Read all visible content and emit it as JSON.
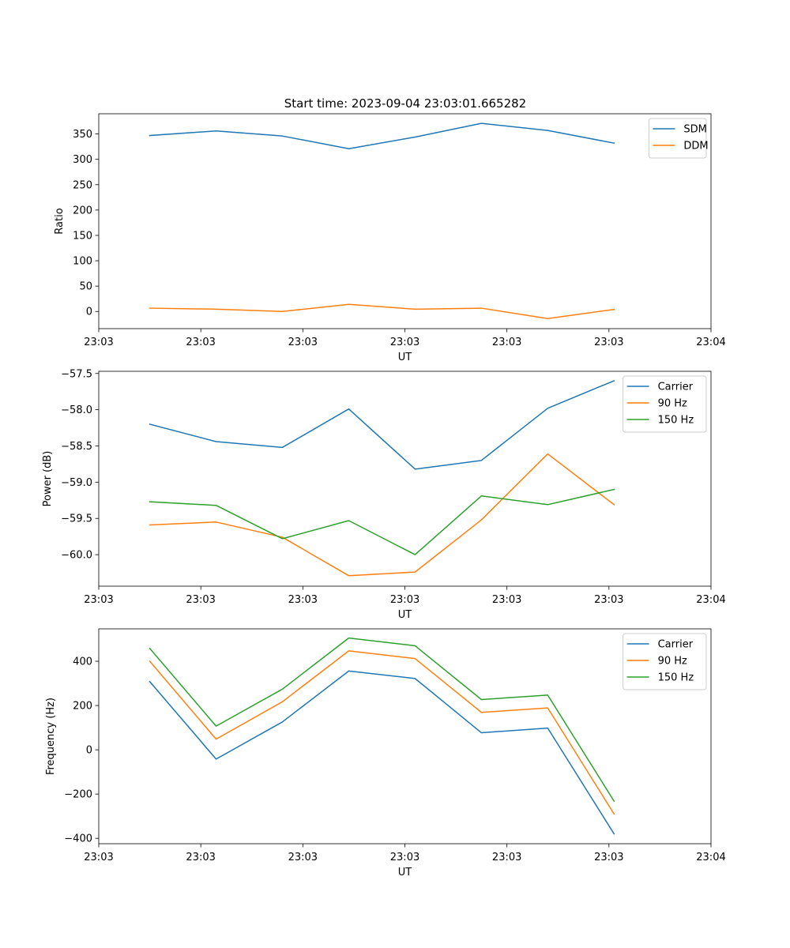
{
  "figure_title": "Start time: 2023-09-04 23:03:01.665282",
  "colors": {
    "blue": "#1f77b4",
    "orange": "#ff7f0e",
    "green": "#2ca02c"
  },
  "chart_data": [
    {
      "type": "line",
      "title": "Start time: 2023-09-04 23:03:01.665282",
      "xlabel": "UT",
      "ylabel": "Ratio",
      "xlim": [
        -0.1,
        0.2
      ],
      "ylim": [
        -33.9,
        389.9
      ],
      "x": [
        -0.075,
        -0.0425,
        -0.01,
        0.0225,
        0.055,
        0.0875,
        0.12,
        0.1525
      ],
      "x_ticks": [
        {
          "value": -0.1,
          "label": "23:03"
        },
        {
          "value": -0.05,
          "label": "23:03"
        },
        {
          "value": 0.0,
          "label": "23:03"
        },
        {
          "value": 0.05,
          "label": "23:03"
        },
        {
          "value": 0.1,
          "label": "23:03"
        },
        {
          "value": 0.15,
          "label": "23:03"
        },
        {
          "value": 0.2,
          "label": "23:04"
        }
      ],
      "y_ticks": [
        0,
        50,
        100,
        150,
        200,
        250,
        300,
        350
      ],
      "y_tick_labels": [
        "0",
        "50",
        "100",
        "150",
        "200",
        "250",
        "300",
        "350"
      ],
      "legend_position": "top-right",
      "grid": false,
      "series": [
        {
          "name": "SDM",
          "color": "#1f77b4",
          "values": [
            347,
            356,
            346,
            321,
            344,
            371,
            357,
            332
          ]
        },
        {
          "name": "DDM",
          "color": "#ff7f0e",
          "values": [
            6.5,
            4.5,
            0,
            14,
            4.5,
            6.5,
            -14,
            4
          ]
        }
      ]
    },
    {
      "type": "line",
      "title": "",
      "xlabel": "UT",
      "ylabel": "Power (dB)",
      "xlim": [
        -0.1,
        0.2
      ],
      "ylim": [
        -60.435,
        -57.47
      ],
      "x": [
        -0.075,
        -0.0425,
        -0.01,
        0.0225,
        0.055,
        0.0875,
        0.12,
        0.1525
      ],
      "x_ticks": [
        {
          "value": -0.1,
          "label": "23:03"
        },
        {
          "value": -0.05,
          "label": "23:03"
        },
        {
          "value": 0.0,
          "label": "23:03"
        },
        {
          "value": 0.05,
          "label": "23:03"
        },
        {
          "value": 0.1,
          "label": "23:03"
        },
        {
          "value": 0.15,
          "label": "23:03"
        },
        {
          "value": 0.2,
          "label": "23:04"
        }
      ],
      "y_ticks": [
        -60.0,
        -59.5,
        -59.0,
        -58.5,
        -58.0,
        -57.5
      ],
      "y_tick_labels": [
        "−60.0",
        "−59.5",
        "−59.0",
        "−58.5",
        "−58.0",
        "−57.5"
      ],
      "legend_position": "top-right",
      "grid": false,
      "series": [
        {
          "name": "Carrier",
          "color": "#1f77b4",
          "values": [
            -58.2,
            -58.44,
            -58.52,
            -57.99,
            -58.82,
            -58.7,
            -57.98,
            -57.6
          ]
        },
        {
          "name": "90 Hz",
          "color": "#ff7f0e",
          "values": [
            -59.59,
            -59.55,
            -59.76,
            -60.29,
            -60.24,
            -59.52,
            -58.61,
            -59.31
          ]
        },
        {
          "name": "150 Hz",
          "color": "#2ca02c",
          "values": [
            -59.27,
            -59.32,
            -59.78,
            -59.53,
            -60.0,
            -59.19,
            -59.31,
            -59.1
          ]
        }
      ]
    },
    {
      "type": "line",
      "title": "",
      "xlabel": "UT",
      "ylabel": "Frequency (Hz)",
      "xlim": [
        -0.1,
        0.2
      ],
      "ylim": [
        -424.4,
        546.4
      ],
      "x": [
        -0.075,
        -0.0425,
        -0.01,
        0.0225,
        0.055,
        0.0875,
        0.12,
        0.1525
      ],
      "x_ticks": [
        {
          "value": -0.1,
          "label": "23:03"
        },
        {
          "value": -0.05,
          "label": "23:03"
        },
        {
          "value": 0.0,
          "label": "23:03"
        },
        {
          "value": 0.05,
          "label": "23:03"
        },
        {
          "value": 0.1,
          "label": "23:03"
        },
        {
          "value": 0.15,
          "label": "23:03"
        },
        {
          "value": 0.2,
          "label": "23:04"
        }
      ],
      "y_ticks": [
        -400,
        -200,
        0,
        200,
        400
      ],
      "y_tick_labels": [
        "−400",
        "−200",
        "0",
        "200",
        "400"
      ],
      "legend_position": "top-right",
      "grid": false,
      "series": [
        {
          "name": "Carrier",
          "color": "#1f77b4",
          "values": [
            308,
            -42,
            126,
            356,
            322,
            77,
            98,
            -380
          ]
        },
        {
          "name": "90 Hz",
          "color": "#ff7f0e",
          "values": [
            400,
            48,
            217,
            447,
            412,
            169,
            189,
            -290
          ]
        },
        {
          "name": "150 Hz",
          "color": "#2ca02c",
          "values": [
            458,
            107,
            274,
            505,
            470,
            227,
            247,
            -232
          ]
        }
      ]
    }
  ]
}
